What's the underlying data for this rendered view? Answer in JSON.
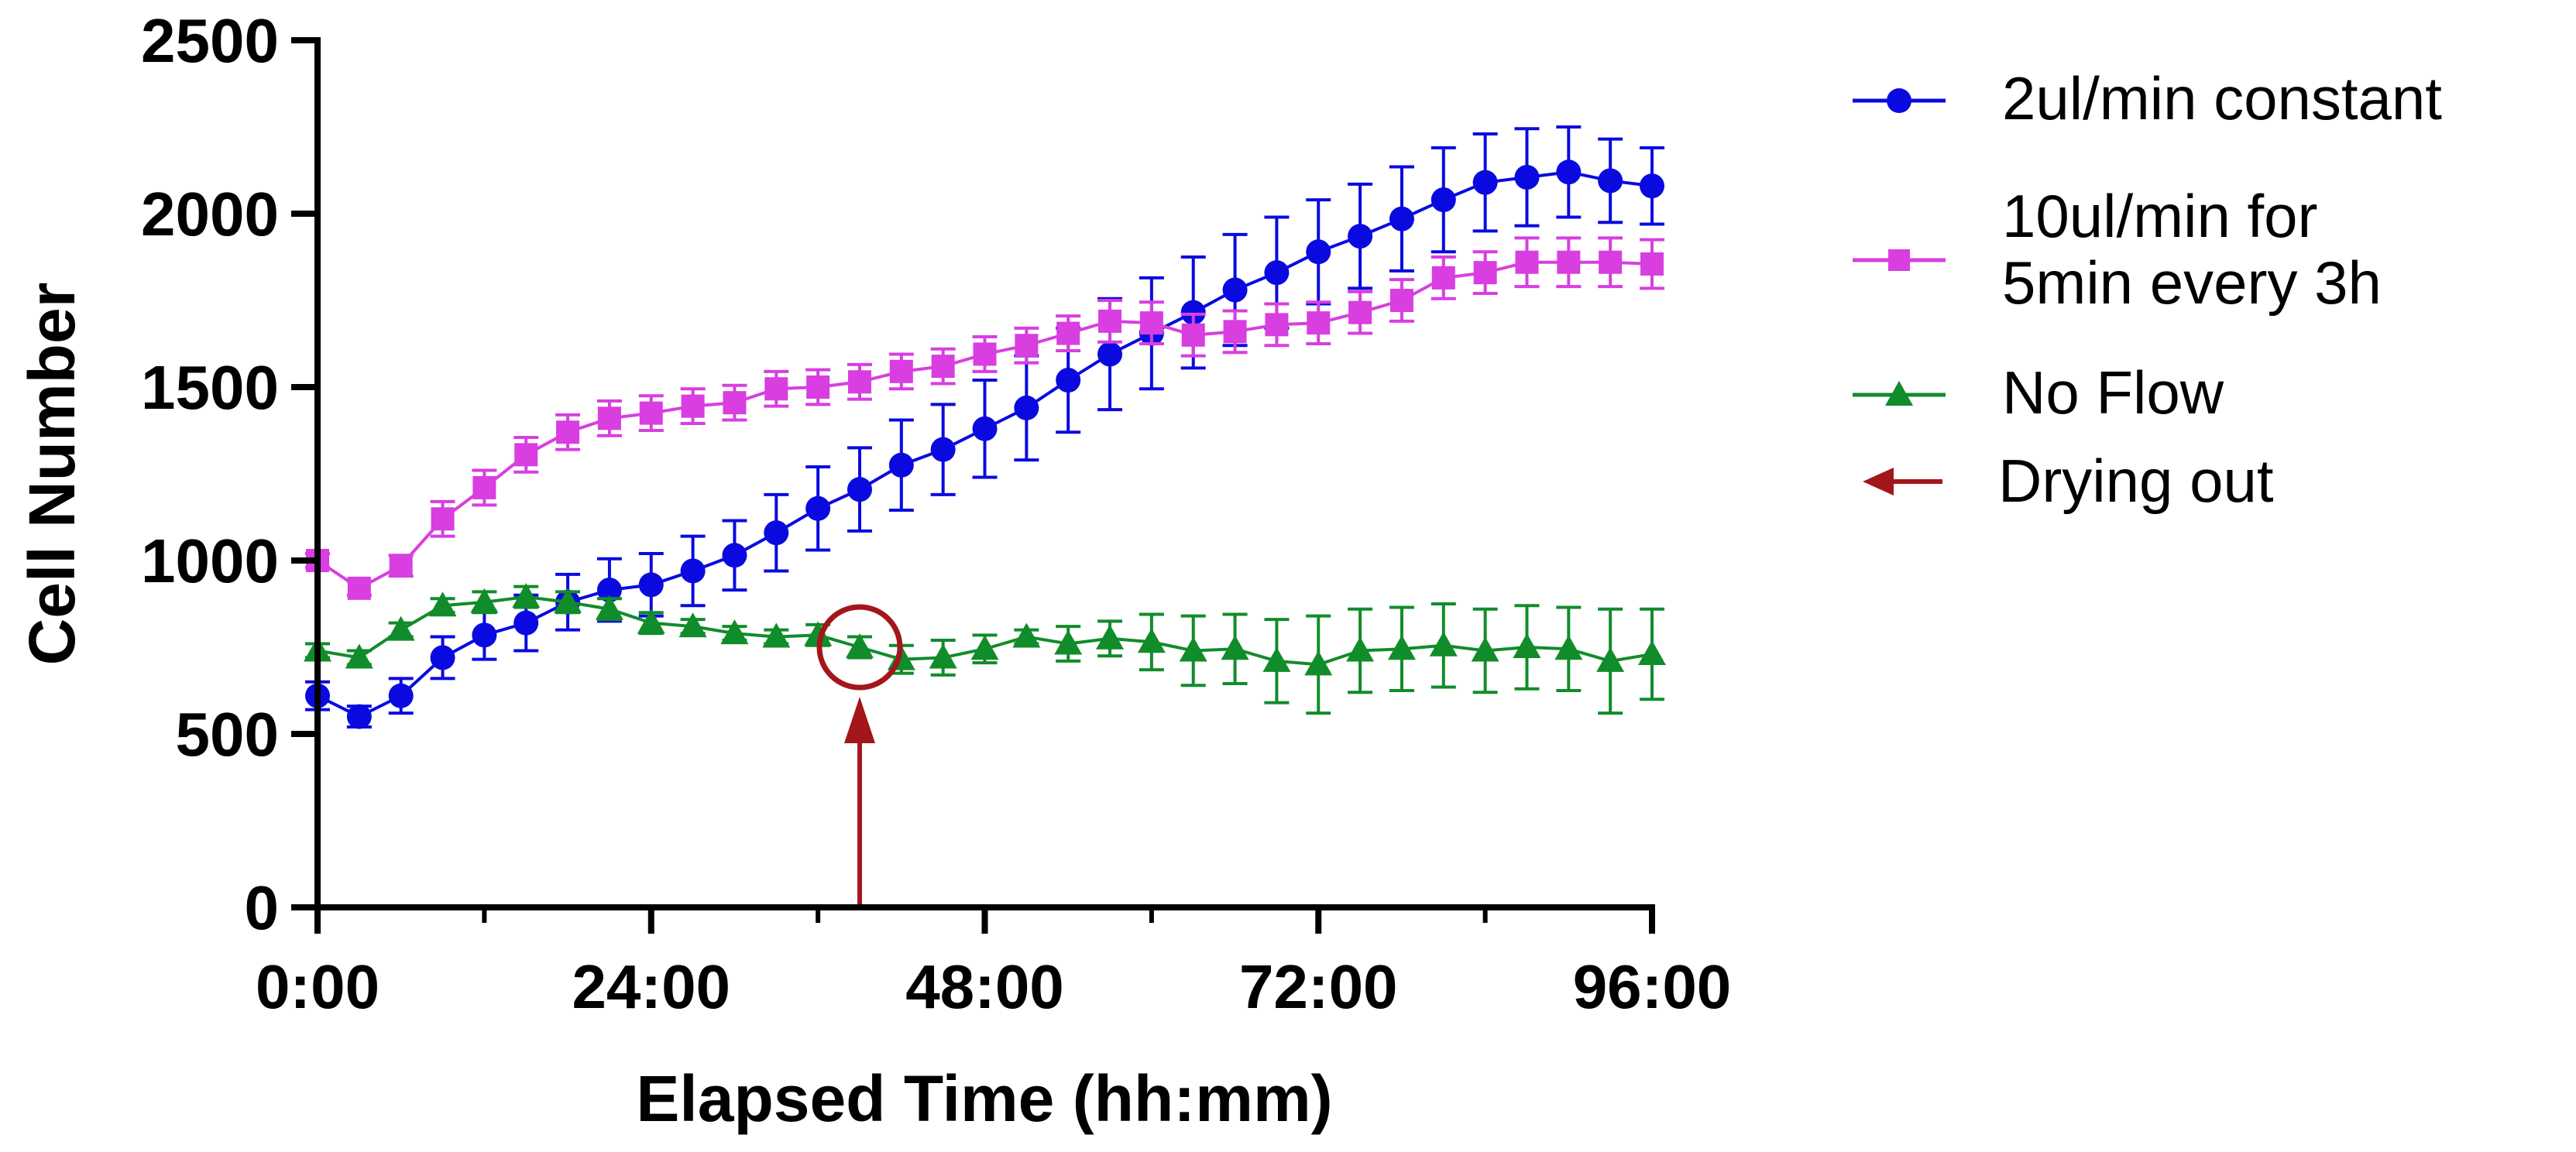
{
  "chart_data": {
    "type": "line",
    "title": "",
    "xlabel": "Elapsed Time (hh:mm)",
    "ylabel": "Cell Number",
    "xlim": [
      0,
      96
    ],
    "ylim": [
      0,
      2500
    ],
    "x_ticks": [
      0,
      24,
      48,
      72,
      96
    ],
    "x_tick_labels": [
      "0:00",
      "24:00",
      "48:00",
      "72:00",
      "96:00"
    ],
    "y_ticks": [
      0,
      500,
      1000,
      1500,
      2000,
      2500
    ],
    "y_tick_labels": [
      "0",
      "500",
      "1000",
      "1500",
      "2000",
      "2500"
    ],
    "grid": false,
    "legend_position": "right",
    "x": [
      0,
      3,
      6,
      9,
      12,
      15,
      18,
      21,
      24,
      27,
      30,
      33,
      36,
      39,
      42,
      45,
      48,
      51,
      54,
      57,
      60,
      63,
      66,
      69,
      72,
      75,
      78,
      81,
      84,
      87,
      90,
      93,
      96
    ],
    "series": [
      {
        "name": "2ul/min constant",
        "color": "#0a0ae0",
        "marker": "circle",
        "values": [
          610,
          550,
          610,
          720,
          785,
          820,
          880,
          915,
          930,
          970,
          1015,
          1080,
          1150,
          1205,
          1275,
          1320,
          1380,
          1440,
          1520,
          1595,
          1655,
          1715,
          1780,
          1830,
          1890,
          1935,
          1985,
          2040,
          2090,
          2105,
          2120,
          2095,
          2080
        ],
        "errors": [
          40,
          30,
          50,
          60,
          70,
          80,
          80,
          90,
          90,
          100,
          100,
          110,
          120,
          120,
          130,
          130,
          140,
          150,
          150,
          160,
          160,
          160,
          160,
          160,
          150,
          150,
          150,
          150,
          140,
          140,
          130,
          120,
          110
        ]
      },
      {
        "name": "10ul/min for 5min every 3h",
        "color": "#d83ee0",
        "marker": "square",
        "values": [
          1000,
          920,
          985,
          1120,
          1210,
          1305,
          1370,
          1410,
          1425,
          1445,
          1455,
          1495,
          1500,
          1515,
          1545,
          1560,
          1595,
          1620,
          1655,
          1690,
          1685,
          1650,
          1660,
          1680,
          1685,
          1715,
          1750,
          1815,
          1830,
          1860,
          1860,
          1860,
          1855
        ],
        "errors": [
          20,
          20,
          30,
          50,
          50,
          50,
          50,
          50,
          50,
          50,
          50,
          50,
          50,
          50,
          50,
          50,
          50,
          50,
          50,
          60,
          60,
          60,
          60,
          60,
          60,
          60,
          60,
          60,
          60,
          70,
          70,
          70,
          70
        ]
      },
      {
        "name": "No Flow",
        "color": "#118c2a",
        "marker": "triangle",
        "values": [
          740,
          720,
          800,
          870,
          880,
          895,
          880,
          860,
          820,
          810,
          790,
          780,
          785,
          750,
          715,
          720,
          745,
          780,
          760,
          775,
          765,
          740,
          745,
          710,
          700,
          740,
          745,
          755,
          740,
          750,
          745,
          710,
          730
        ],
        "errors": [
          20,
          20,
          20,
          20,
          30,
          30,
          30,
          30,
          30,
          20,
          20,
          20,
          30,
          30,
          40,
          50,
          40,
          20,
          50,
          50,
          80,
          100,
          100,
          120,
          140,
          120,
          120,
          120,
          120,
          120,
          120,
          150,
          130
        ]
      }
    ],
    "annotation": {
      "label": "Drying out",
      "color": "#a3161b",
      "x": 39,
      "y": 750
    }
  }
}
